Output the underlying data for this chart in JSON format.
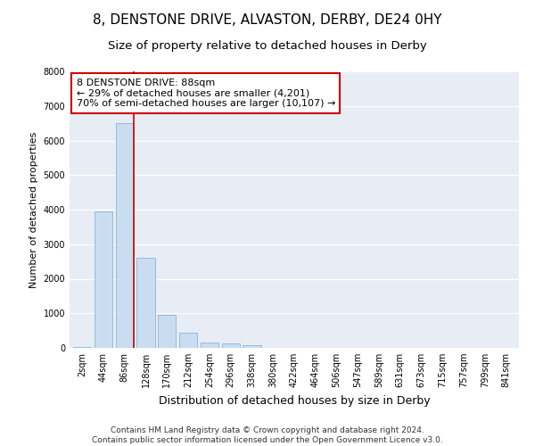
{
  "title": "8, DENSTONE DRIVE, ALVASTON, DERBY, DE24 0HY",
  "subtitle": "Size of property relative to detached houses in Derby",
  "xlabel": "Distribution of detached houses by size in Derby",
  "ylabel": "Number of detached properties",
  "categories": [
    "2sqm",
    "44sqm",
    "86sqm",
    "128sqm",
    "170sqm",
    "212sqm",
    "254sqm",
    "296sqm",
    "338sqm",
    "380sqm",
    "422sqm",
    "464sqm",
    "506sqm",
    "547sqm",
    "589sqm",
    "631sqm",
    "673sqm",
    "715sqm",
    "757sqm",
    "799sqm",
    "841sqm"
  ],
  "values": [
    30,
    3950,
    6500,
    2600,
    950,
    430,
    150,
    120,
    80,
    0,
    0,
    0,
    0,
    0,
    0,
    0,
    0,
    0,
    0,
    0,
    0
  ],
  "bar_color": "#c9ddf0",
  "bar_edge_color": "#8ab4d8",
  "bg_color": "#e8edf5",
  "grid_color": "#ffffff",
  "vline_color": "#cc0000",
  "annotation_text": "8 DENSTONE DRIVE: 88sqm\n← 29% of detached houses are smaller (4,201)\n70% of semi-detached houses are larger (10,107) →",
  "annotation_box_color": "#ffffff",
  "annotation_box_edge": "#cc0000",
  "ylim": [
    0,
    8000
  ],
  "yticks": [
    0,
    1000,
    2000,
    3000,
    4000,
    5000,
    6000,
    7000,
    8000
  ],
  "footnote": "Contains HM Land Registry data © Crown copyright and database right 2024.\nContains public sector information licensed under the Open Government Licence v3.0.",
  "title_fontsize": 11,
  "subtitle_fontsize": 9.5,
  "xlabel_fontsize": 9,
  "ylabel_fontsize": 8,
  "tick_fontsize": 7,
  "annot_fontsize": 8,
  "footnote_fontsize": 6.5
}
